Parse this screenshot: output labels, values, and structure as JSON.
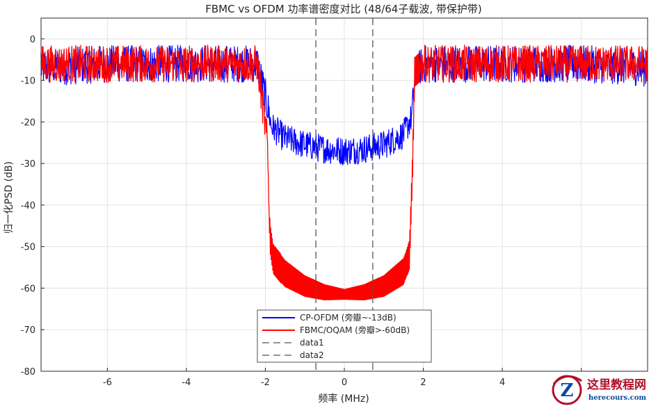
{
  "chart_data": {
    "type": "line",
    "title": "FBMC vs OFDM 功率谱密度对比 (48/64子载波, 带保护带)",
    "xlabel": "频率 (MHz)",
    "ylabel": "归一化PSD (dB)",
    "xlim": [
      -7.68,
      7.68
    ],
    "ylim": [
      -80,
      5
    ],
    "xticks": [
      -6,
      -4,
      -2,
      0,
      2,
      4
    ],
    "yticks": [
      0,
      -10,
      -20,
      -30,
      -40,
      -50,
      -60,
      -70,
      -80
    ],
    "grid": true,
    "legend_position": "bottom-center",
    "series": [
      {
        "name": "CP-OFDM (旁瓣~-13dB)",
        "color": "#0000ff",
        "style": "solid",
        "x": [
          -7.68,
          -6.0,
          -4.0,
          -2.2,
          -1.95,
          -1.85,
          -1.5,
          -1.0,
          -0.5,
          0.0,
          0.5,
          1.0,
          1.5,
          1.7,
          1.8,
          2.0,
          4.0,
          6.0,
          7.68
        ],
        "y": [
          -7,
          -6,
          -6,
          -6,
          -16,
          -21,
          -24,
          -25.5,
          -26.5,
          -27,
          -26.5,
          -25.5,
          -23,
          -19,
          -8,
          -6,
          -6,
          -6,
          -7
        ]
      },
      {
        "name": "FBMC/OQAM (旁瓣>-60dB)",
        "color": "#ff0000",
        "style": "solid",
        "x": [
          -7.68,
          -6.0,
          -4.0,
          -2.2,
          -1.95,
          -1.88,
          -1.8,
          -1.5,
          -1.0,
          -0.5,
          0.0,
          0.5,
          1.0,
          1.5,
          1.65,
          1.73,
          1.78,
          2.0,
          4.0,
          6.0,
          7.68
        ],
        "y": [
          -6,
          -6,
          -6,
          -6,
          -25,
          -48,
          -53,
          -56.5,
          -59.5,
          -61,
          -61.5,
          -61,
          -59.5,
          -56,
          -52,
          -30,
          -8,
          -6,
          -6,
          -6,
          -6
        ]
      },
      {
        "name": "data1",
        "color": "#555555",
        "style": "dashed",
        "x": [
          -0.72,
          -0.72
        ],
        "y": [
          5,
          -80
        ]
      },
      {
        "name": "data2",
        "color": "#555555",
        "style": "dashed",
        "x": [
          0.72,
          0.72
        ],
        "y": [
          5,
          -80
        ]
      }
    ]
  },
  "watermark": {
    "site_name": "这里教程网",
    "site_url": "herecours.com"
  }
}
